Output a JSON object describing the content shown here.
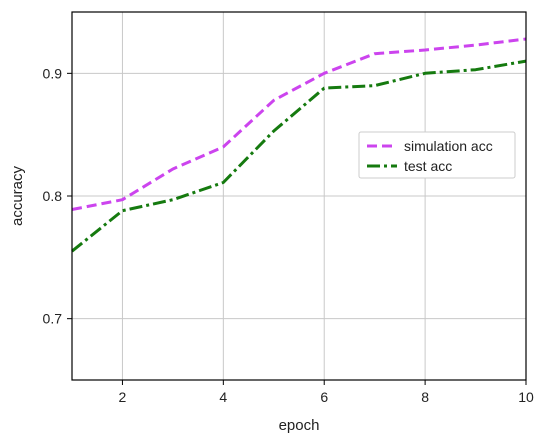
{
  "chart_data": {
    "type": "line",
    "title": "",
    "xlabel": "epoch",
    "ylabel": "accuracy",
    "xlim": [
      1,
      10
    ],
    "ylim": [
      0.65,
      0.95
    ],
    "xticks": [
      2,
      4,
      6,
      8,
      10
    ],
    "yticks": [
      0.7,
      0.8,
      0.9
    ],
    "grid": true,
    "legend_position": "center-right",
    "series": [
      {
        "name": "simulation acc",
        "color": "#cc44ee",
        "style": "dashed",
        "x": [
          1,
          2,
          3,
          4,
          5,
          6,
          7,
          8,
          9,
          10
        ],
        "y": [
          0.789,
          0.797,
          0.822,
          0.84,
          0.878,
          0.9,
          0.916,
          0.919,
          0.923,
          0.928
        ]
      },
      {
        "name": "test acc",
        "color": "#157a0f",
        "style": "dashdot",
        "x": [
          1,
          2,
          3,
          4,
          5,
          6,
          7,
          8,
          9,
          10
        ],
        "y": [
          0.755,
          0.788,
          0.797,
          0.811,
          0.853,
          0.888,
          0.89,
          0.9,
          0.903,
          0.91
        ]
      }
    ]
  }
}
